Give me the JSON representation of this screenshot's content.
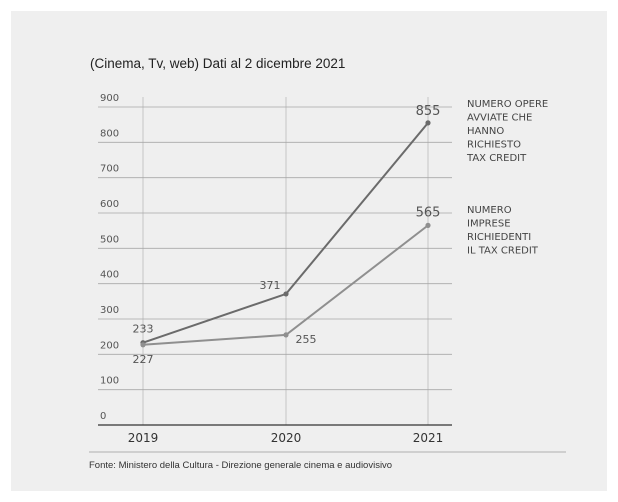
{
  "chart_data": {
    "type": "line",
    "title": "(Cinema, Tv, web) Dati al 2 dicembre 2021",
    "x": [
      "2019",
      "2020",
      "2021"
    ],
    "y_ticks": [
      "0",
      "100",
      "200",
      "300",
      "400",
      "500",
      "600",
      "700",
      "800",
      "900"
    ],
    "ylim": [
      0,
      900
    ],
    "grid": true,
    "legend_placement": "right",
    "series": [
      {
        "name": "NUMERO OPERE AVVIATE CHE HANNO RICHIESTO TAX CREDIT",
        "label_lines": [
          "NUMERO OPERE",
          "AVVIATE CHE",
          "HANNO",
          "RICHIESTO",
          "TAX CREDIT"
        ],
        "values": [
          233,
          371,
          855
        ],
        "value_labels": [
          "233",
          "371",
          "855"
        ],
        "color": "#6b6b6b"
      },
      {
        "name": "NUMERO IMPRESE RICHIEDENTI IL TAX CREDIT",
        "label_lines": [
          "NUMERO",
          "IMPRESE",
          "RICHIEDENTI",
          "IL TAX CREDIT"
        ],
        "values": [
          227,
          255,
          565
        ],
        "value_labels": [
          "227",
          "255",
          "565"
        ],
        "color": "#8f8f8f"
      }
    ]
  },
  "source": "Fonte: Ministero della Cultura - Direzione generale cinema e audiovisivo",
  "colors": {
    "background": "#efefef",
    "grid": "#a8a8a8",
    "axis": "#333333",
    "text": "#555555"
  }
}
